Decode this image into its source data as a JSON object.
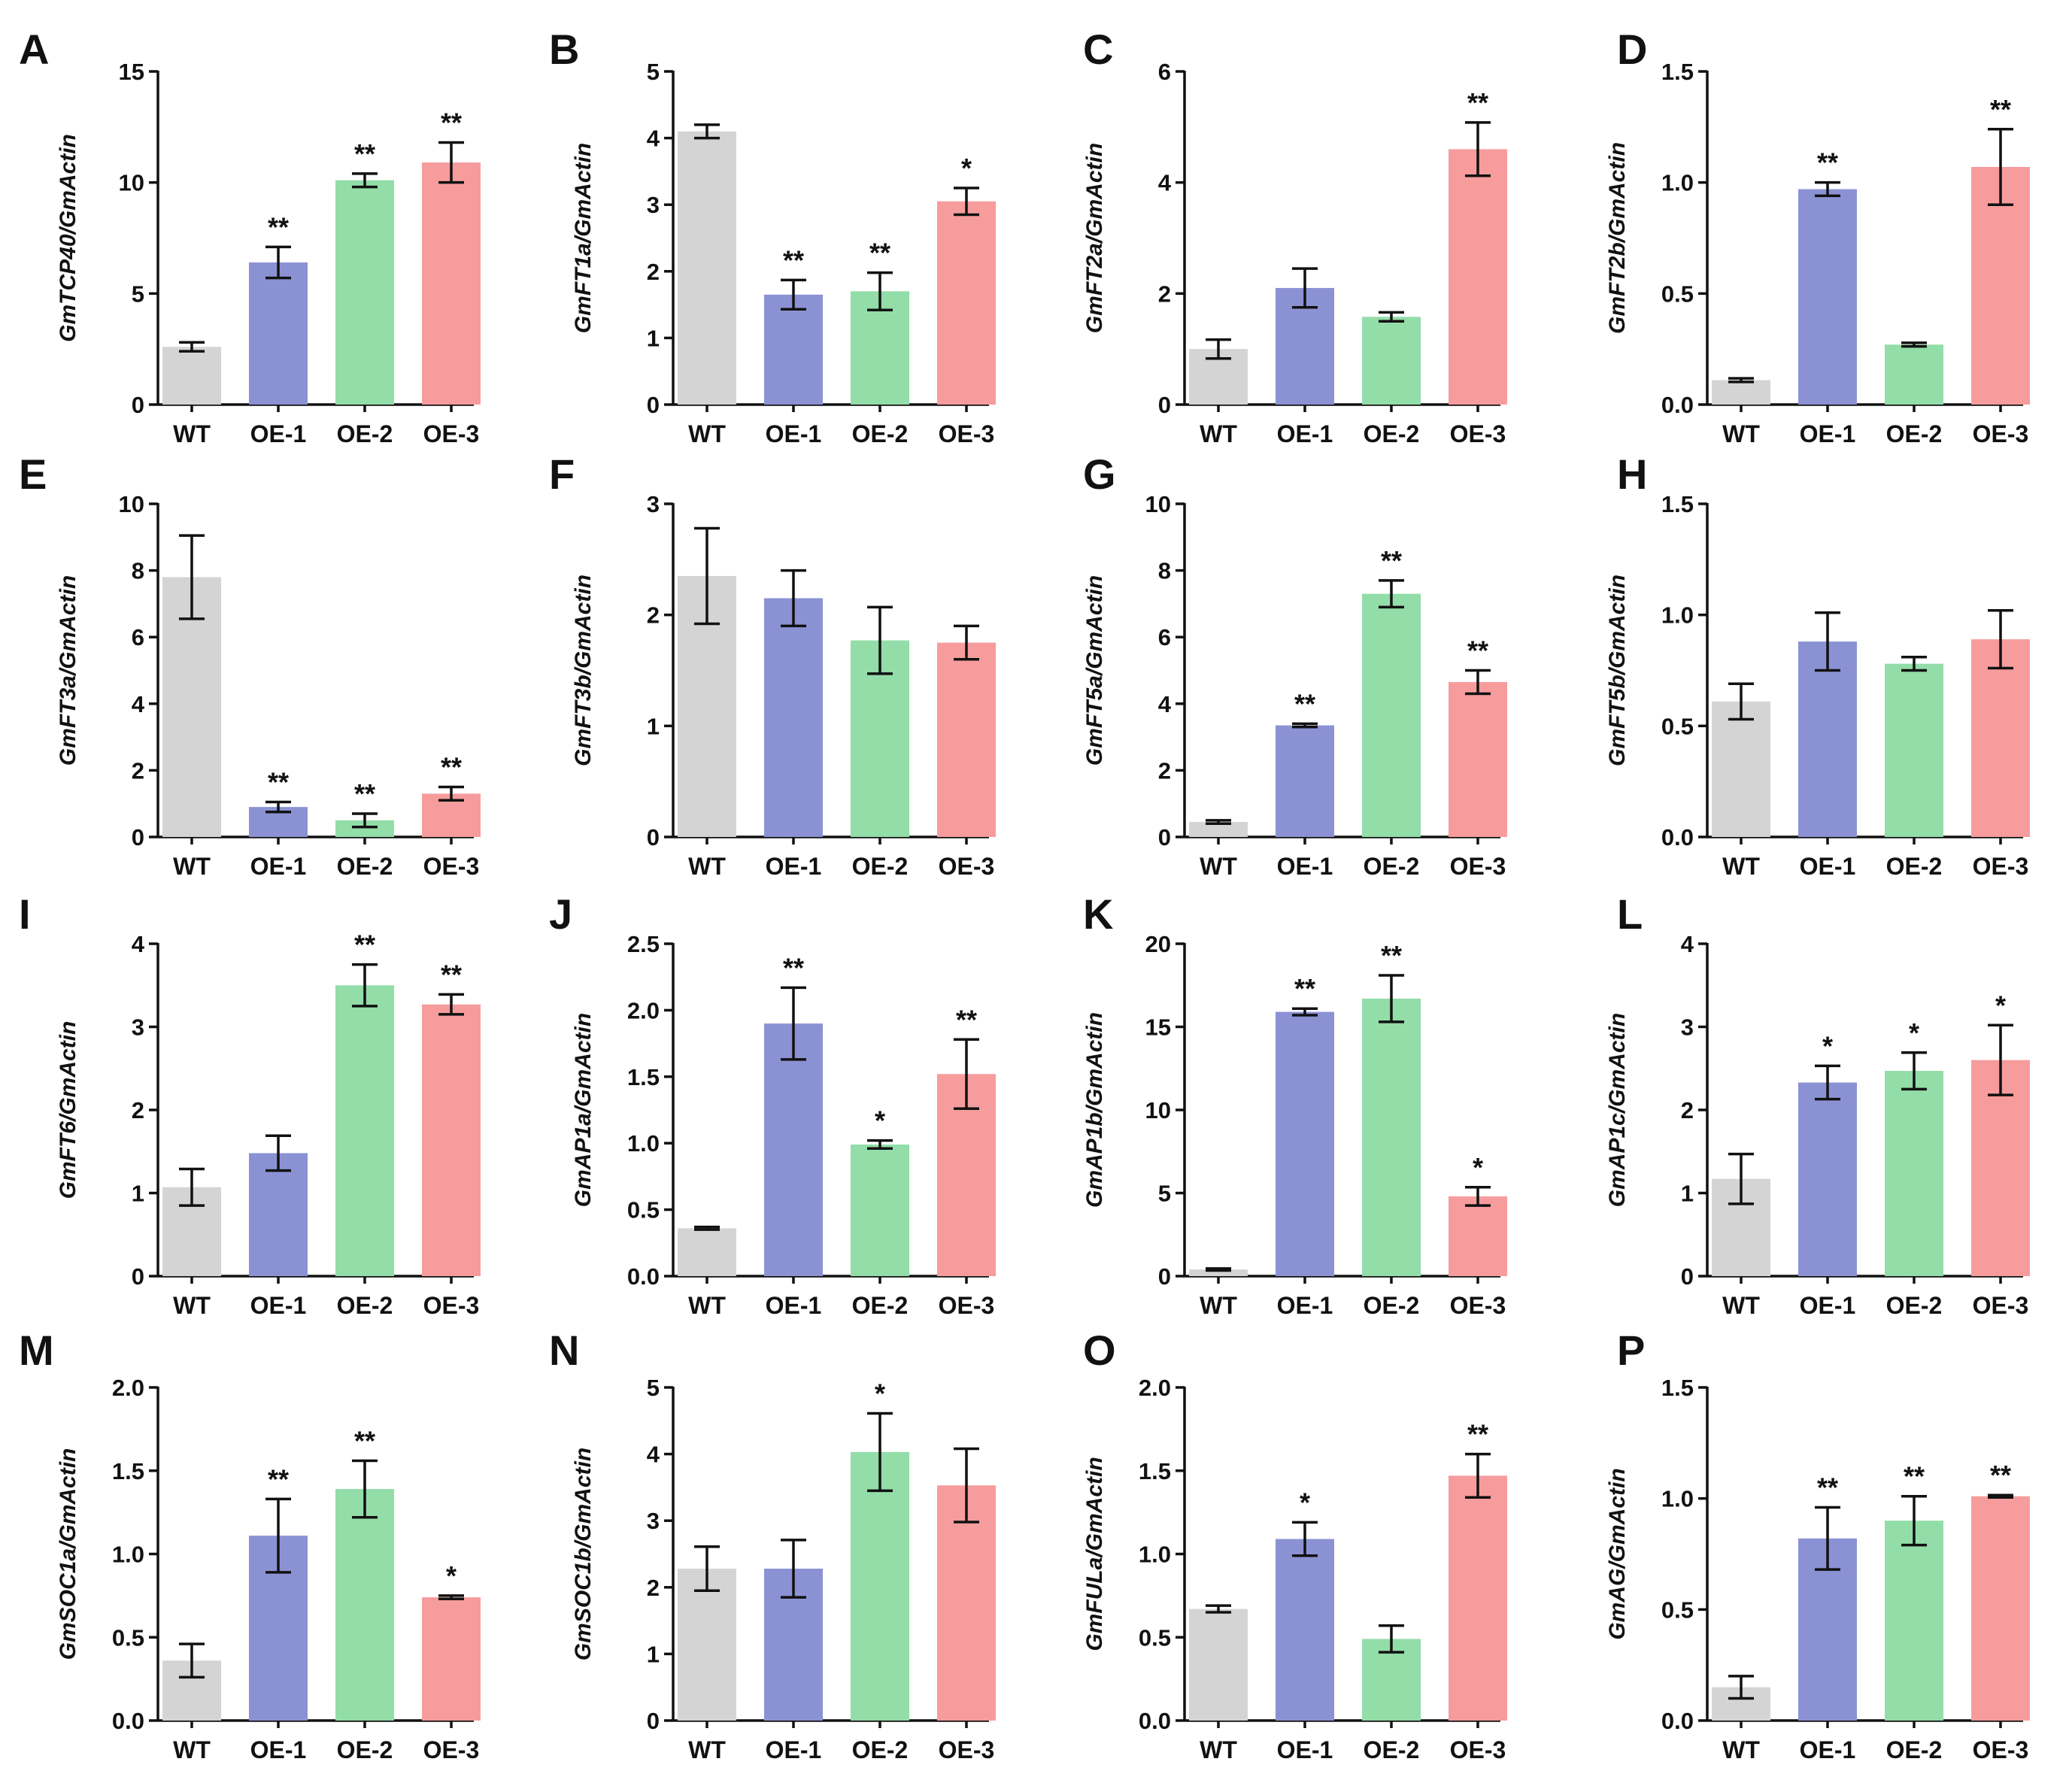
{
  "colors": {
    "WT": "#d4d4d4",
    "OE-1": "#8b92d4",
    "OE-2": "#92dda8",
    "OE-3": "#f79c9c"
  },
  "chart_data": [
    {
      "panel": "A",
      "type": "bar",
      "ylabel": "GmTCP40/GmActin",
      "categories": [
        "WT",
        "OE-1",
        "OE-2",
        "OE-3"
      ],
      "values": [
        2.6,
        6.4,
        10.1,
        10.9
      ],
      "errors": [
        0.2,
        0.7,
        0.3,
        0.9
      ],
      "sig": [
        "",
        "**",
        "**",
        "**"
      ],
      "ylim": [
        0,
        15
      ],
      "yticks": [
        0,
        5,
        10,
        15
      ],
      "ytick_labels": [
        "0",
        "5",
        "10",
        "15"
      ]
    },
    {
      "panel": "B",
      "type": "bar",
      "ylabel": "GmFT1a/GmActin",
      "categories": [
        "WT",
        "OE-1",
        "OE-2",
        "OE-3"
      ],
      "values": [
        4.1,
        1.65,
        1.7,
        3.05
      ],
      "errors": [
        0.1,
        0.22,
        0.28,
        0.2
      ],
      "sig": [
        "",
        "**",
        "**",
        "*"
      ],
      "ylim": [
        0,
        5
      ],
      "yticks": [
        0,
        1,
        2,
        3,
        4,
        5
      ],
      "ytick_labels": [
        "0",
        "1",
        "2",
        "3",
        "4",
        "5"
      ]
    },
    {
      "panel": "C",
      "type": "bar",
      "ylabel": "GmFT2a/GmActin",
      "categories": [
        "WT",
        "OE-1",
        "OE-2",
        "OE-3"
      ],
      "values": [
        1.0,
        2.1,
        1.58,
        4.6
      ],
      "errors": [
        0.17,
        0.35,
        0.08,
        0.48
      ],
      "sig": [
        "",
        "",
        "",
        "**"
      ],
      "ylim": [
        0,
        6
      ],
      "yticks": [
        0,
        2,
        4,
        6
      ],
      "ytick_labels": [
        "0",
        "2",
        "4",
        "6"
      ]
    },
    {
      "panel": "D",
      "type": "bar",
      "ylabel": "GmFT2b/GmActin",
      "categories": [
        "WT",
        "OE-1",
        "OE-2",
        "OE-3"
      ],
      "values": [
        0.11,
        0.97,
        0.27,
        1.07
      ],
      "errors": [
        0.008,
        0.03,
        0.008,
        0.17
      ],
      "sig": [
        "",
        "**",
        "",
        "**"
      ],
      "ylim": [
        0,
        1.5
      ],
      "yticks": [
        0,
        0.5,
        1.0,
        1.5
      ],
      "ytick_labels": [
        "0.0",
        "0.5",
        "1.0",
        "1.5"
      ]
    },
    {
      "panel": "E",
      "type": "bar",
      "ylabel": "GmFT3a/GmActin",
      "categories": [
        "WT",
        "OE-1",
        "OE-2",
        "OE-3"
      ],
      "values": [
        7.8,
        0.9,
        0.5,
        1.3
      ],
      "errors": [
        1.25,
        0.15,
        0.2,
        0.2
      ],
      "sig": [
        "",
        "**",
        "**",
        "**"
      ],
      "ylim": [
        0,
        10
      ],
      "yticks": [
        0,
        2,
        4,
        6,
        8,
        10
      ],
      "ytick_labels": [
        "0",
        "2",
        "4",
        "6",
        "8",
        "10"
      ]
    },
    {
      "panel": "F",
      "type": "bar",
      "ylabel": "GmFT3b/GmActin",
      "categories": [
        "WT",
        "OE-1",
        "OE-2",
        "OE-3"
      ],
      "values": [
        2.35,
        2.15,
        1.77,
        1.75
      ],
      "errors": [
        0.43,
        0.25,
        0.3,
        0.15
      ],
      "sig": [
        "",
        "",
        "",
        ""
      ],
      "ylim": [
        0,
        3
      ],
      "yticks": [
        0,
        1,
        2,
        3
      ],
      "ytick_labels": [
        "0",
        "1",
        "2",
        "3"
      ]
    },
    {
      "panel": "G",
      "type": "bar",
      "ylabel": "GmFT5a/GmActin",
      "categories": [
        "WT",
        "OE-1",
        "OE-2",
        "OE-3"
      ],
      "values": [
        0.45,
        3.35,
        7.3,
        4.65
      ],
      "errors": [
        0.05,
        0.05,
        0.4,
        0.35
      ],
      "sig": [
        "",
        "**",
        "**",
        "**"
      ],
      "ylim": [
        0,
        10
      ],
      "yticks": [
        0,
        2,
        4,
        6,
        8,
        10
      ],
      "ytick_labels": [
        "0",
        "2",
        "4",
        "6",
        "8",
        "10"
      ]
    },
    {
      "panel": "H",
      "type": "bar",
      "ylabel": "GmFT5b/GmActin",
      "categories": [
        "WT",
        "OE-1",
        "OE-2",
        "OE-3"
      ],
      "values": [
        0.61,
        0.88,
        0.78,
        0.89
      ],
      "errors": [
        0.08,
        0.13,
        0.03,
        0.13
      ],
      "sig": [
        "",
        "",
        "",
        ""
      ],
      "ylim": [
        0,
        1.5
      ],
      "yticks": [
        0,
        0.5,
        1.0,
        1.5
      ],
      "ytick_labels": [
        "0.0",
        "0.5",
        "1.0",
        "1.5"
      ]
    },
    {
      "panel": "I",
      "type": "bar",
      "ylabel": "GmFT6/GmActin",
      "categories": [
        "WT",
        "OE-1",
        "OE-2",
        "OE-3"
      ],
      "values": [
        1.07,
        1.48,
        3.5,
        3.27
      ],
      "errors": [
        0.22,
        0.21,
        0.25,
        0.12
      ],
      "sig": [
        "",
        "",
        "**",
        "**"
      ],
      "ylim": [
        0,
        4
      ],
      "yticks": [
        0,
        1,
        2,
        3,
        4
      ],
      "ytick_labels": [
        "0",
        "1",
        "2",
        "3",
        "4"
      ]
    },
    {
      "panel": "J",
      "type": "bar",
      "ylabel": "GmAP1a/GmActin",
      "categories": [
        "WT",
        "OE-1",
        "OE-2",
        "OE-3"
      ],
      "values": [
        0.36,
        1.9,
        0.99,
        1.52
      ],
      "errors": [
        0.01,
        0.27,
        0.03,
        0.26
      ],
      "sig": [
        "",
        "**",
        "*",
        "**"
      ],
      "ylim": [
        0,
        2.5
      ],
      "yticks": [
        0,
        0.5,
        1.0,
        1.5,
        2.0,
        2.5
      ],
      "ytick_labels": [
        "0.0",
        "0.5",
        "1.0",
        "1.5",
        "2.0",
        "2.5"
      ]
    },
    {
      "panel": "K",
      "type": "bar",
      "ylabel": "GmAP1b/GmActin",
      "categories": [
        "WT",
        "OE-1",
        "OE-2",
        "OE-3"
      ],
      "values": [
        0.4,
        15.9,
        16.7,
        4.8
      ],
      "errors": [
        0.06,
        0.2,
        1.4,
        0.55
      ],
      "sig": [
        "",
        "**",
        "**",
        "*"
      ],
      "ylim": [
        0,
        20
      ],
      "yticks": [
        0,
        5,
        10,
        15,
        20
      ],
      "ytick_labels": [
        "0",
        "5",
        "10",
        "15",
        "20"
      ]
    },
    {
      "panel": "L",
      "type": "bar",
      "ylabel": "GmAP1c/GmActin",
      "categories": [
        "WT",
        "OE-1",
        "OE-2",
        "OE-3"
      ],
      "values": [
        1.17,
        2.33,
        2.47,
        2.6
      ],
      "errors": [
        0.3,
        0.2,
        0.22,
        0.42
      ],
      "sig": [
        "",
        "*",
        "*",
        "*"
      ],
      "ylim": [
        0,
        4
      ],
      "yticks": [
        0,
        1,
        2,
        3,
        4
      ],
      "ytick_labels": [
        "0",
        "1",
        "2",
        "3",
        "4"
      ]
    },
    {
      "panel": "M",
      "type": "bar",
      "ylabel": "GmSOC1a/GmActin",
      "categories": [
        "WT",
        "OE-1",
        "OE-2",
        "OE-3"
      ],
      "values": [
        0.36,
        1.11,
        1.39,
        0.74
      ],
      "errors": [
        0.1,
        0.22,
        0.17,
        0.01
      ],
      "sig": [
        "",
        "**",
        "**",
        "*"
      ],
      "ylim": [
        0,
        2
      ],
      "yticks": [
        0,
        0.5,
        1.0,
        1.5,
        2.0
      ],
      "ytick_labels": [
        "0.0",
        "0.5",
        "1.0",
        "1.5",
        "2.0"
      ]
    },
    {
      "panel": "N",
      "type": "bar",
      "ylabel": "GmSOC1b/GmActin",
      "categories": [
        "WT",
        "OE-1",
        "OE-2",
        "OE-3"
      ],
      "values": [
        2.28,
        2.28,
        4.03,
        3.53
      ],
      "errors": [
        0.33,
        0.43,
        0.58,
        0.55
      ],
      "sig": [
        "",
        "",
        "*",
        ""
      ],
      "ylim": [
        0,
        5
      ],
      "yticks": [
        0,
        1,
        2,
        3,
        4,
        5
      ],
      "ytick_labels": [
        "0",
        "1",
        "2",
        "3",
        "4",
        "5"
      ]
    },
    {
      "panel": "O",
      "type": "bar",
      "ylabel": "GmFULa/GmActin",
      "categories": [
        "WT",
        "OE-1",
        "OE-2",
        "OE-3"
      ],
      "values": [
        0.67,
        1.09,
        0.49,
        1.47
      ],
      "errors": [
        0.02,
        0.1,
        0.08,
        0.13
      ],
      "sig": [
        "",
        "*",
        "",
        "**"
      ],
      "ylim": [
        0,
        2
      ],
      "yticks": [
        0,
        0.5,
        1.0,
        1.5,
        2.0
      ],
      "ytick_labels": [
        "0.0",
        "0.5",
        "1.0",
        "1.5",
        "2.0"
      ]
    },
    {
      "panel": "P",
      "type": "bar",
      "ylabel": "GmAG/GmActin",
      "categories": [
        "WT",
        "OE-1",
        "OE-2",
        "OE-3"
      ],
      "values": [
        0.15,
        0.82,
        0.9,
        1.01
      ],
      "errors": [
        0.05,
        0.14,
        0.11,
        0.005
      ],
      "sig": [
        "",
        "**",
        "**",
        "**"
      ],
      "ylim": [
        0,
        1.5
      ],
      "yticks": [
        0,
        0.5,
        1.0,
        1.5
      ],
      "ytick_labels": [
        "0.0",
        "0.5",
        "1.0",
        "1.5"
      ]
    }
  ]
}
